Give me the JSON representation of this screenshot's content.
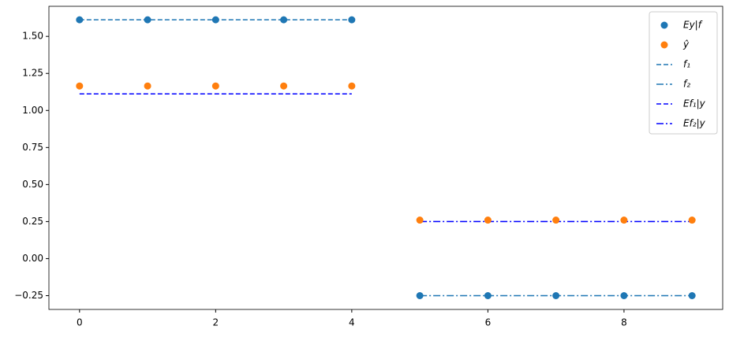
{
  "chart_data": {
    "type": "combo",
    "xlim": [
      -0.45,
      9.45
    ],
    "xticks": [
      0,
      2,
      4,
      6,
      8
    ],
    "ylim": [
      -0.343,
      1.703
    ],
    "yticks": [
      {
        "value": -0.25,
        "label": "−0.25"
      },
      {
        "value": 0,
        "label": "0.00"
      },
      {
        "value": 0.25,
        "label": "0.25"
      },
      {
        "value": 0.5,
        "label": "0.50"
      },
      {
        "value": 0.75,
        "label": "0.75"
      },
      {
        "value": 1,
        "label": "1.00"
      },
      {
        "value": 1.25,
        "label": "1.25"
      },
      {
        "value": 1.5,
        "label": "1.50"
      }
    ],
    "legend": "upper right",
    "series": [
      {
        "name": "Ey|f",
        "type": "scatter",
        "color": "#1f77b4",
        "x": [
          0,
          1,
          2,
          3,
          4,
          5,
          6,
          7,
          8,
          9
        ],
        "values": [
          1.612,
          1.612,
          1.612,
          1.612,
          1.612,
          -0.25,
          -0.25,
          -0.25,
          -0.25,
          -0.25
        ]
      },
      {
        "name": "ŷ",
        "type": "scatter",
        "color": "#ff7f0e",
        "x": [
          0,
          1,
          2,
          3,
          4,
          5,
          6,
          7,
          8,
          9
        ],
        "values": [
          1.165,
          1.165,
          1.165,
          1.165,
          1.165,
          0.26,
          0.26,
          0.26,
          0.26,
          0.26
        ]
      },
      {
        "name": "f₁",
        "type": "line",
        "linestyle": "dashed",
        "color": "#1f77b4",
        "x": [
          0,
          1,
          2,
          3,
          4
        ],
        "values": [
          1.612,
          1.612,
          1.612,
          1.612,
          1.612
        ]
      },
      {
        "name": "f₂",
        "type": "line",
        "linestyle": "dashdot",
        "color": "#1f77b4",
        "x": [
          5,
          6,
          7,
          8,
          9
        ],
        "values": [
          -0.25,
          -0.25,
          -0.25,
          -0.25,
          -0.25
        ]
      },
      {
        "name": "Ef₁|y",
        "type": "line",
        "linestyle": "dashed",
        "color": "#0000ff",
        "x": [
          0,
          1,
          2,
          3,
          4
        ],
        "values": [
          1.112,
          1.112,
          1.112,
          1.112,
          1.112
        ]
      },
      {
        "name": "Ef₂|y",
        "type": "line",
        "linestyle": "dashdot",
        "color": "#0000ff",
        "x": [
          5,
          6,
          7,
          8,
          9
        ],
        "values": [
          0.25,
          0.25,
          0.25,
          0.25,
          0.25
        ]
      }
    ]
  }
}
